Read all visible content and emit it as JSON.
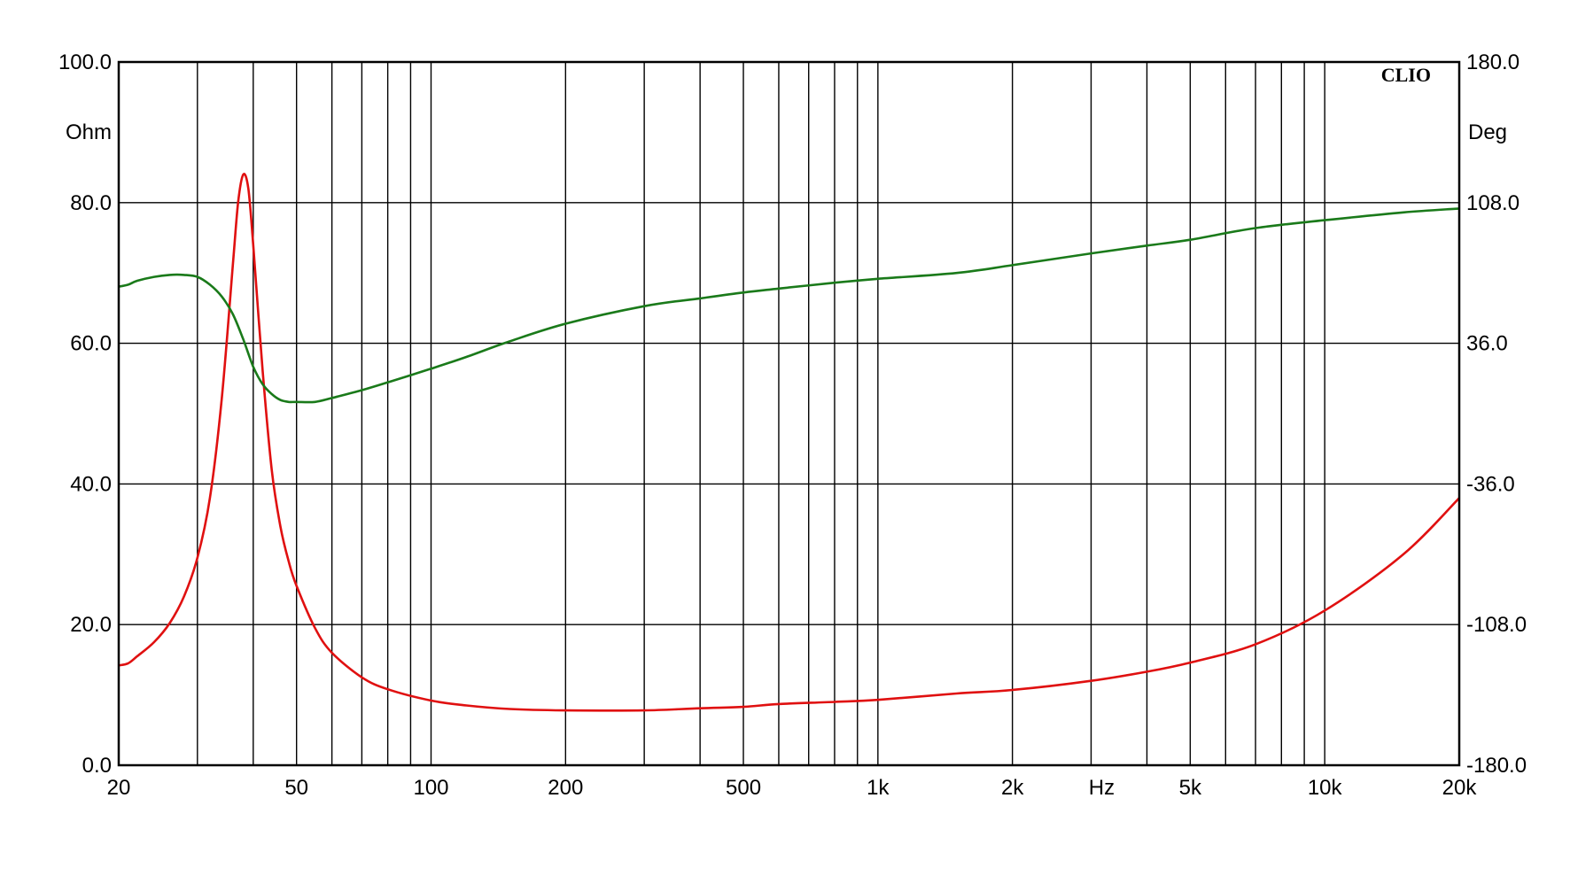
{
  "chart_data": {
    "type": "line",
    "brand": "CLIO",
    "x_scale": "log",
    "xlim": [
      20,
      20000
    ],
    "x_unit_label": "Hz",
    "x_tick_labels": [
      {
        "value": 20,
        "label": "20"
      },
      {
        "value": 50,
        "label": "50"
      },
      {
        "value": 100,
        "label": "100"
      },
      {
        "value": 200,
        "label": "200"
      },
      {
        "value": 500,
        "label": "500"
      },
      {
        "value": 1000,
        "label": "1k"
      },
      {
        "value": 2000,
        "label": "2k"
      },
      {
        "value": 5000,
        "label": "5k"
      },
      {
        "value": 10000,
        "label": "10k"
      },
      {
        "value": 20000,
        "label": "20k"
      }
    ],
    "hz_label_at": 3000,
    "x_gridlines": [
      20,
      30,
      40,
      50,
      60,
      70,
      80,
      90,
      100,
      200,
      300,
      400,
      500,
      600,
      700,
      800,
      900,
      1000,
      2000,
      3000,
      4000,
      5000,
      6000,
      7000,
      8000,
      9000,
      10000,
      20000
    ],
    "left_axis": {
      "unit": "Ohm",
      "range": [
        0,
        100
      ],
      "ticks": [
        {
          "value": 0,
          "label": "0.0"
        },
        {
          "value": 20,
          "label": "20.0"
        },
        {
          "value": 40,
          "label": "40.0"
        },
        {
          "value": 60,
          "label": "60.0"
        },
        {
          "value": 80,
          "label": "80.0"
        },
        {
          "value": 100,
          "label": "100.0"
        }
      ]
    },
    "right_axis": {
      "unit": "Deg",
      "range": [
        -180,
        180
      ],
      "ticks": [
        {
          "value": -180,
          "label": "-180.0"
        },
        {
          "value": -108,
          "label": "-108.0"
        },
        {
          "value": -36,
          "label": "-36.0"
        },
        {
          "value": 36,
          "label": "36.0"
        },
        {
          "value": 108,
          "label": "108.0"
        },
        {
          "value": 180,
          "label": "180.0"
        }
      ]
    },
    "grid": true,
    "series": [
      {
        "axis": "left",
        "color": "#e01010",
        "x": [
          20,
          21,
          22,
          24,
          26,
          28,
          30,
          32,
          34,
          36,
          37,
          38,
          39,
          40,
          42,
          44,
          46,
          48,
          50,
          55,
          60,
          70,
          80,
          100,
          120,
          150,
          200,
          300,
          400,
          500,
          600,
          800,
          1000,
          1500,
          2000,
          3000,
          4000,
          5000,
          7000,
          10000,
          15000,
          20000
        ],
        "y": [
          14.2,
          14.5,
          15.5,
          17.5,
          20.2,
          24.0,
          29.5,
          38.0,
          52.0,
          71.0,
          80.0,
          84.0,
          82.0,
          74.0,
          56.0,
          42.0,
          34.0,
          29.0,
          25.5,
          19.5,
          16.0,
          12.5,
          10.8,
          9.2,
          8.5,
          8.0,
          7.8,
          7.8,
          8.1,
          8.3,
          8.7,
          9.0,
          9.3,
          10.2,
          10.7,
          12.0,
          13.3,
          14.6,
          17.2,
          22.0,
          30.0,
          38.0
        ]
      },
      {
        "axis": "right",
        "color": "#1a7a1a",
        "x": [
          20,
          21,
          22,
          24,
          26,
          28,
          30,
          32,
          34,
          36,
          38,
          40,
          42,
          44,
          46,
          48,
          50,
          55,
          60,
          70,
          80,
          100,
          120,
          150,
          200,
          300,
          400,
          500,
          600,
          800,
          1000,
          1500,
          2000,
          3000,
          4000,
          5000,
          7000,
          10000,
          15000,
          20000
        ],
        "y": [
          65,
          66,
          68,
          70,
          71,
          71,
          70,
          66,
          60,
          51,
          38,
          24,
          15,
          10,
          7,
          6,
          6,
          6,
          8,
          12,
          16,
          23,
          29,
          37,
          46,
          55,
          59,
          62,
          64,
          67,
          69,
          72,
          76,
          82,
          86,
          89,
          95,
          99,
          103,
          105
        ]
      }
    ]
  }
}
